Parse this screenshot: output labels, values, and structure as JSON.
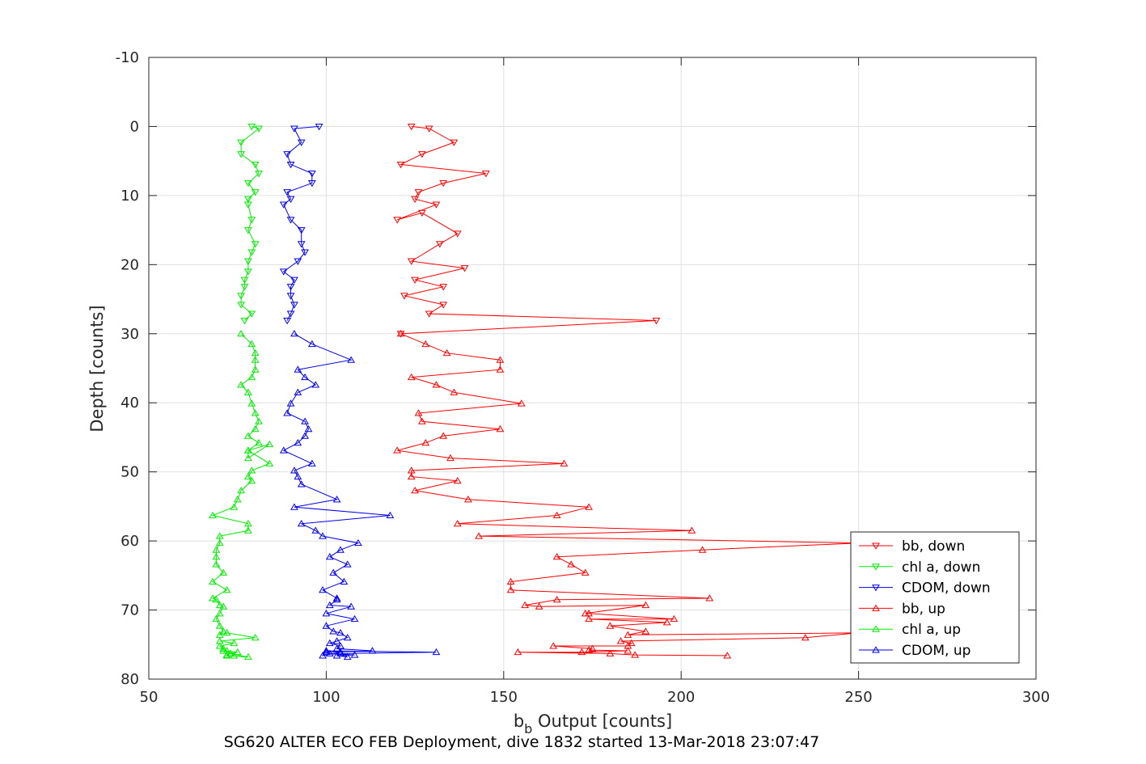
{
  "chart_data": {
    "type": "line",
    "title": "",
    "xlabel": {
      "base": "b",
      "sub": "b",
      "rest": " Output [counts]"
    },
    "ylabel": "Depth [counts]",
    "caption": "SG620 ALTER ECO FEB Deployment, dive 1832 started 13-Mar-2018 23:07:47",
    "xlim": [
      50,
      300
    ],
    "ylim": [
      -10,
      80
    ],
    "y_reversed": true,
    "grid": true,
    "legend_position": "bottom-right",
    "xticks": [
      "50",
      "100",
      "150",
      "200",
      "250",
      "300"
    ],
    "yticks": [
      "-10",
      "0",
      "10",
      "20",
      "30",
      "40",
      "50",
      "60",
      "70",
      "80"
    ],
    "series": [
      {
        "name": "bb, down",
        "color": "#ff0000",
        "marker": "triangle-down",
        "x": [
          124,
          129,
          136,
          127,
          121,
          145,
          133,
          126,
          125,
          131,
          120,
          127,
          137,
          132,
          124,
          139,
          125,
          133,
          122,
          133,
          129,
          193,
          121
        ],
        "y": [
          0,
          0.3,
          2.3,
          4,
          5.5,
          6.8,
          8.2,
          9.5,
          10.5,
          11.3,
          13.5,
          12.5,
          15.5,
          17,
          19.5,
          20.5,
          22.2,
          23.2,
          24.5,
          25.8,
          27.1,
          28.1,
          30
        ]
      },
      {
        "name": "chl a, down",
        "color": "#00ee00",
        "marker": "triangle-down",
        "x": [
          79,
          81,
          76,
          76,
          80,
          81,
          78,
          80,
          78,
          78,
          79,
          78,
          80,
          79,
          78,
          78,
          77,
          77,
          76,
          76,
          79,
          77
        ],
        "y": [
          0,
          0.3,
          2.3,
          4,
          5.5,
          6.8,
          8.2,
          9.5,
          10.5,
          11.3,
          13.5,
          15,
          17,
          18.2,
          19.5,
          21,
          22.2,
          23.2,
          24.5,
          25.8,
          27.1,
          28.1
        ]
      },
      {
        "name": "CDOM, down",
        "color": "#0000ee",
        "marker": "triangle-down",
        "x": [
          98,
          91,
          93,
          89,
          90,
          96,
          96,
          89,
          90,
          88,
          90,
          93,
          93,
          94,
          92,
          88,
          91,
          90,
          90,
          91,
          90,
          89
        ],
        "y": [
          0,
          0.3,
          2.3,
          4,
          5.5,
          6.8,
          8.2,
          9.5,
          10.5,
          11.3,
          13.5,
          15,
          17,
          18.2,
          19.5,
          21,
          22.2,
          23.2,
          24.5,
          25.8,
          27.1,
          28.1
        ]
      },
      {
        "name": "bb, up",
        "color": "#ff0000",
        "marker": "triangle-up",
        "x": [
          121,
          128,
          134,
          149,
          149,
          124,
          131,
          136,
          155,
          126,
          127,
          149,
          133,
          128,
          120,
          135,
          167,
          124,
          124,
          137,
          125,
          140,
          174,
          165,
          137,
          203,
          143,
          250,
          206,
          165,
          169,
          173,
          152,
          152,
          208,
          165,
          156,
          160,
          190,
          173,
          174,
          198,
          174,
          196,
          180,
          190,
          185,
          250,
          235,
          183,
          186,
          185,
          164,
          175,
          174,
          185,
          172,
          154,
          180,
          187,
          213
        ],
        "y": [
          30,
          31.5,
          32.8,
          33.8,
          35.2,
          36.3,
          37.4,
          38.5,
          40.1,
          41.5,
          42.7,
          43.8,
          44.8,
          45.8,
          46.9,
          48,
          48.8,
          49.8,
          50.7,
          51.3,
          52.7,
          54,
          55.1,
          56.3,
          57.5,
          58.5,
          59.3,
          60.3,
          61.3,
          62.3,
          63.4,
          64.6,
          65.9,
          67.1,
          68.3,
          68.5,
          69.3,
          69.5,
          69.3,
          70.5,
          70.5,
          71.3,
          71.3,
          71.8,
          72.3,
          73.1,
          73.6,
          73.3,
          74,
          74.5,
          74.8,
          75.2,
          75.2,
          75.6,
          75.8,
          75.9,
          76.1,
          76.1,
          76.3,
          76.5,
          76.6
        ]
      },
      {
        "name": "chl a, up",
        "color": "#00ee00",
        "marker": "triangle-up",
        "x": [
          76,
          79,
          80,
          80,
          80,
          79,
          76,
          78,
          79,
          80,
          81,
          80,
          78,
          81,
          78,
          84,
          78,
          78,
          84,
          79,
          78,
          79,
          76,
          75,
          74,
          68,
          78,
          78,
          70,
          70,
          69,
          69,
          69,
          71,
          68,
          72,
          68,
          69,
          70,
          71,
          70,
          69,
          70,
          71,
          70,
          72,
          80,
          70,
          74,
          70,
          71,
          71,
          75,
          73,
          72,
          72,
          78,
          73,
          72,
          74
        ],
        "y": [
          30,
          31.5,
          32.8,
          33.8,
          35.2,
          36.3,
          37.4,
          38.5,
          40.1,
          41.5,
          42.7,
          43.8,
          44.8,
          45.8,
          46.9,
          46,
          48,
          46.9,
          48.8,
          49.8,
          50.7,
          51.3,
          52.7,
          54,
          55.1,
          56.3,
          57.5,
          58.5,
          59.3,
          60.3,
          61.3,
          62.3,
          63.4,
          64.6,
          65.9,
          67.1,
          68.3,
          68.5,
          69.3,
          69.5,
          70.5,
          71.3,
          72.3,
          73.1,
          73.6,
          73.3,
          74,
          74.5,
          74.8,
          75.2,
          75.6,
          75.9,
          76.1,
          76.3,
          76.5,
          76.6,
          76.8,
          76.3,
          75.9,
          76.6
        ]
      },
      {
        "name": "CDOM, up",
        "color": "#0000ee",
        "marker": "triangle-up",
        "x": [
          91,
          96,
          107,
          92,
          94,
          97,
          92,
          90,
          89,
          94,
          95,
          94,
          92,
          88,
          96,
          91,
          92,
          93,
          103,
          91,
          118,
          93,
          97,
          99,
          109,
          104,
          101,
          106,
          102,
          105,
          99,
          103,
          103,
          101,
          107,
          100,
          108,
          100,
          102,
          104,
          106,
          103,
          101,
          104,
          103,
          113,
          100,
          101,
          108,
          103,
          106,
          104,
          131,
          100,
          99,
          104
        ],
        "y": [
          30,
          31.5,
          33.8,
          35.2,
          36.3,
          37.4,
          38.5,
          40.1,
          41.5,
          42.7,
          43.8,
          44.8,
          45.8,
          46.9,
          48.8,
          49.8,
          50.7,
          51.8,
          54,
          55.1,
          56.3,
          57.5,
          58.5,
          59.3,
          60.3,
          61.3,
          62.3,
          63.4,
          64.6,
          65.9,
          67.1,
          68.3,
          68.5,
          69.3,
          69.5,
          70.5,
          71.3,
          72.3,
          73.1,
          73.3,
          74,
          74.5,
          74.8,
          75.2,
          75.6,
          75.9,
          76.1,
          76.3,
          76.5,
          76.6,
          76.8,
          76.3,
          76.1,
          75.9,
          76.6,
          76.1
        ]
      }
    ]
  }
}
